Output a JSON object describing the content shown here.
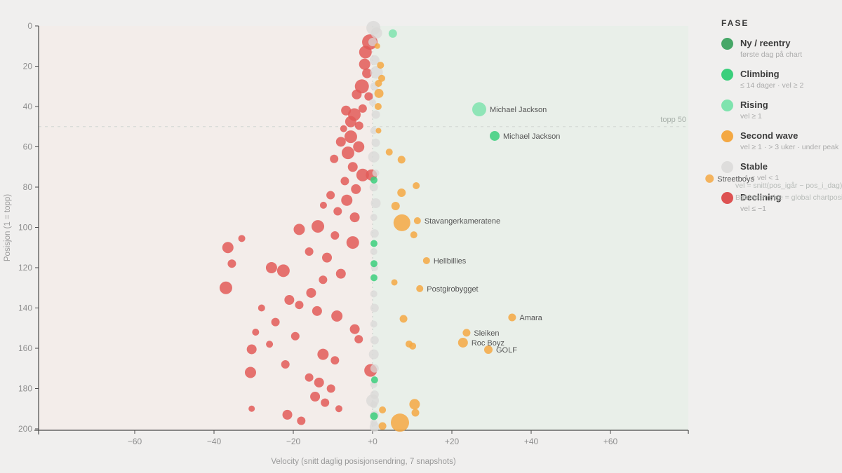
{
  "chart_data": {
    "type": "scatter",
    "title": "",
    "xlabel": "Velocity (snitt daglig posisjonsendring, 7 snapshots)",
    "ylabel": "Posisjon (1 = topp)",
    "x_ticks": [
      {
        "v": -60,
        "t": "−60"
      },
      {
        "v": -40,
        "t": "−40"
      },
      {
        "v": -20,
        "t": "−20"
      },
      {
        "v": 0,
        "t": "+0"
      },
      {
        "v": 20,
        "t": "+20"
      },
      {
        "v": 40,
        "t": "+40"
      },
      {
        "v": 60,
        "t": "+60"
      }
    ],
    "y_ticks": [
      {
        "v": 0,
        "t": "0"
      },
      {
        "v": 20,
        "t": "20"
      },
      {
        "v": 40,
        "t": "40"
      },
      {
        "v": 60,
        "t": "60"
      },
      {
        "v": 80,
        "t": "80"
      },
      {
        "v": 100,
        "t": "100"
      },
      {
        "v": 120,
        "t": "120"
      },
      {
        "v": 140,
        "t": "140"
      },
      {
        "v": 160,
        "t": "160"
      },
      {
        "v": 180,
        "t": "180"
      },
      {
        "v": 200,
        "t": "200"
      }
    ],
    "xlim": [
      -84,
      80
    ],
    "ylim": [
      0,
      200
    ],
    "y_inverted": true,
    "grid": false,
    "reference_line": {
      "pos": 50,
      "label": "topp 50"
    },
    "zero_velocity_line": 0,
    "phase_colors": {
      "declining": "#e25b58",
      "stable": "#d9d8d7",
      "second_wave": "#f4a843",
      "climbing": "#3bcf7c",
      "rising": "#7fe3ae",
      "ny": "#46a767"
    },
    "background": {
      "page": "#f0efee",
      "left_half": "#f3edea",
      "right_half": "#e9efe9"
    },
    "bubbles": {
      "declining": [
        [
          -0.7,
          8,
          11
        ],
        [
          -1.8,
          13,
          9
        ],
        [
          -2,
          19,
          8
        ],
        [
          -1.4,
          23.5,
          7
        ],
        [
          -2.7,
          30,
          10
        ],
        [
          -4,
          34,
          7
        ],
        [
          -1,
          35,
          6
        ],
        [
          -2.5,
          41,
          6
        ],
        [
          -6.7,
          42,
          7
        ],
        [
          -4.6,
          44,
          9
        ],
        [
          -5.5,
          47.5,
          8
        ],
        [
          -3.4,
          49.5,
          6
        ],
        [
          -7.3,
          51,
          5
        ],
        [
          -5.5,
          55,
          9
        ],
        [
          -8,
          57.5,
          7
        ],
        [
          -3.5,
          60,
          8
        ],
        [
          -6.2,
          63,
          9
        ],
        [
          -9.7,
          66,
          6
        ],
        [
          -5,
          70,
          7
        ],
        [
          -2.5,
          74,
          9
        ],
        [
          -7,
          77,
          6
        ],
        [
          -4.2,
          81,
          7
        ],
        [
          -10.6,
          84,
          6
        ],
        [
          -6.5,
          86.5,
          8
        ],
        [
          -12.4,
          89,
          5
        ],
        [
          -8.8,
          92,
          6
        ],
        [
          -4.5,
          95,
          7
        ],
        [
          -13.8,
          99.5,
          9
        ],
        [
          -18.5,
          101,
          8
        ],
        [
          -9.5,
          104,
          6
        ],
        [
          -33,
          105.5,
          5
        ],
        [
          -5,
          107.5,
          9
        ],
        [
          -36.5,
          110,
          8
        ],
        [
          -16,
          112,
          6
        ],
        [
          -11.5,
          115,
          7
        ],
        [
          -35.5,
          118,
          6
        ],
        [
          -25.5,
          120,
          8
        ],
        [
          -22.5,
          121.5,
          9
        ],
        [
          -8,
          123,
          7
        ],
        [
          -12.5,
          126,
          6
        ],
        [
          -37,
          130,
          9
        ],
        [
          -15.5,
          132.5,
          7
        ],
        [
          -21,
          136,
          7
        ],
        [
          -18.5,
          138.5,
          6
        ],
        [
          -28,
          140,
          5
        ],
        [
          -14,
          141.5,
          7
        ],
        [
          -9,
          144,
          8
        ],
        [
          -24.5,
          147,
          6
        ],
        [
          -29.5,
          152,
          5
        ],
        [
          -19.5,
          154,
          6
        ],
        [
          -4.5,
          150.5,
          7
        ],
        [
          -3.5,
          155.5,
          6
        ],
        [
          -26,
          158,
          5
        ],
        [
          -30.5,
          160.5,
          7
        ],
        [
          -12.5,
          163,
          8
        ],
        [
          -9.5,
          166,
          6
        ],
        [
          -22,
          168,
          6
        ],
        [
          -30.8,
          172,
          8
        ],
        [
          -16,
          174.5,
          6
        ],
        [
          -13.5,
          177,
          7
        ],
        [
          -10.5,
          180,
          6
        ],
        [
          -0.5,
          171,
          9
        ],
        [
          -14.5,
          184,
          7
        ],
        [
          -12,
          187,
          6
        ],
        [
          -8.5,
          190,
          5
        ],
        [
          -30.5,
          190,
          4.5
        ],
        [
          -21.5,
          193,
          7
        ],
        [
          -18,
          196,
          6
        ],
        [
          -0.3,
          74,
          8
        ]
      ],
      "stable": [
        [
          0.2,
          1,
          10
        ],
        [
          1,
          3.5,
          8
        ],
        [
          0,
          8,
          6
        ],
        [
          0.5,
          17,
          7
        ],
        [
          1,
          23,
          9
        ],
        [
          0.5,
          30,
          6
        ],
        [
          0,
          38,
          5
        ],
        [
          0.8,
          44,
          6
        ],
        [
          0.3,
          52,
          5
        ],
        [
          0.8,
          58,
          6
        ],
        [
          0.3,
          65,
          8
        ],
        [
          0.8,
          73,
          5
        ],
        [
          0.3,
          80,
          6
        ],
        [
          0.8,
          88,
          7
        ],
        [
          0.3,
          95,
          5
        ],
        [
          0.5,
          103,
          6
        ],
        [
          0.3,
          112,
          5
        ],
        [
          0.5,
          120,
          5
        ],
        [
          0.3,
          133,
          5
        ],
        [
          0.5,
          140,
          6
        ],
        [
          0.3,
          148,
          5
        ],
        [
          0.5,
          156,
          6
        ],
        [
          0.3,
          163,
          7
        ],
        [
          0.5,
          170,
          6
        ],
        [
          0.3,
          178,
          5
        ],
        [
          0,
          186,
          9
        ],
        [
          0.5,
          183,
          6
        ],
        [
          0.3,
          188,
          5
        ],
        [
          0.5,
          193,
          6
        ],
        [
          0.3,
          197,
          5
        ],
        [
          0.5,
          199,
          7
        ]
      ],
      "second_wave": [
        [
          1.2,
          10,
          4
        ],
        [
          2,
          19.5,
          5
        ],
        [
          2.3,
          26,
          5
        ],
        [
          1.5,
          28.5,
          5
        ],
        [
          1.6,
          33.5,
          6.5
        ],
        [
          1.4,
          40,
          5
        ],
        [
          1.5,
          52,
          4
        ],
        [
          4.2,
          62.6,
          5
        ],
        [
          7.3,
          66.4,
          5.5
        ],
        [
          11,
          79.3,
          5
        ],
        [
          7.3,
          82.8,
          6
        ],
        [
          5.8,
          89.4,
          6
        ],
        [
          7.4,
          97.7,
          12
        ],
        [
          10.4,
          103.7,
          5
        ],
        [
          5.5,
          127.3,
          4.5
        ],
        [
          7.8,
          145.4,
          5.5
        ],
        [
          9.2,
          157.9,
          5
        ],
        [
          10.1,
          158.9,
          5
        ],
        [
          10.6,
          187.8,
          7.5
        ],
        [
          10.8,
          192,
          5.5
        ],
        [
          2.5,
          190.6,
          5
        ],
        [
          6.9,
          196.9,
          13
        ],
        [
          2.5,
          198.6,
          5.5
        ]
      ],
      "climbing": [
        [
          0.35,
          76.5,
          5
        ],
        [
          0.35,
          108,
          5
        ],
        [
          0.35,
          118,
          5
        ],
        [
          0.35,
          125,
          5
        ],
        [
          0.5,
          175.7,
          5
        ],
        [
          0.35,
          193.7,
          5.5
        ]
      ],
      "rising": [
        [
          5.1,
          3.8,
          6
        ]
      ],
      "ny": []
    },
    "labeled_points": [
      {
        "name": "Michael Jackson",
        "phase": "rising",
        "vel": 26.9,
        "pos": 41.4,
        "r": 10
      },
      {
        "name": "Michael Jackson",
        "phase": "climbing",
        "vel": 30.8,
        "pos": 54.6,
        "r": 7
      },
      {
        "name": "Stavangerkameratene",
        "phase": "second_wave",
        "vel": 11.3,
        "pos": 96.7,
        "r": 5
      },
      {
        "name": "Hellbillies",
        "phase": "second_wave",
        "vel": 13.6,
        "pos": 116.5,
        "r": 5
      },
      {
        "name": "Postgirobygget",
        "phase": "second_wave",
        "vel": 11.9,
        "pos": 130.4,
        "r": 5
      },
      {
        "name": "Amara",
        "phase": "second_wave",
        "vel": 35.2,
        "pos": 144.7,
        "r": 5.5
      },
      {
        "name": "Sleiken",
        "phase": "second_wave",
        "vel": 23.7,
        "pos": 152.3,
        "r": 5.5
      },
      {
        "name": "Roc Boyz",
        "phase": "second_wave",
        "vel": 22.8,
        "pos": 157.2,
        "r": 7
      },
      {
        "name": "GOLF",
        "phase": "second_wave",
        "vel": 29.2,
        "pos": 160.7,
        "r": 6
      },
      {
        "name": "Streetboys",
        "phase": "second_wave",
        "vel": 85,
        "pos": 75.8,
        "r": 6
      }
    ]
  },
  "legend": {
    "title": "FASE",
    "items": [
      {
        "label": "Ny / reentry",
        "sub": "første dag på chart",
        "color": "#46a767"
      },
      {
        "label": "Climbing",
        "sub": "≤ 14 dager · vel ≥ 2",
        "color": "#3bcf7c"
      },
      {
        "label": "Rising",
        "sub": "vel ≥ 1",
        "color": "#7fe3ae"
      },
      {
        "label": "Second wave",
        "sub": "vel ≥ 1 · > 3 uker · under peak",
        "color": "#f4a843"
      },
      {
        "label": "Stable",
        "sub": "−1 < vel < 1",
        "color": "#dedddc"
      },
      {
        "label": "Declining",
        "sub": "vel ≤ −1",
        "color": "#dd5252"
      }
    ],
    "footnotes": [
      "vel = snitt(pos_igår − pos_i_dag), 7 dager",
      "Boblestørrelse = global chartposisjon (større"
    ]
  }
}
